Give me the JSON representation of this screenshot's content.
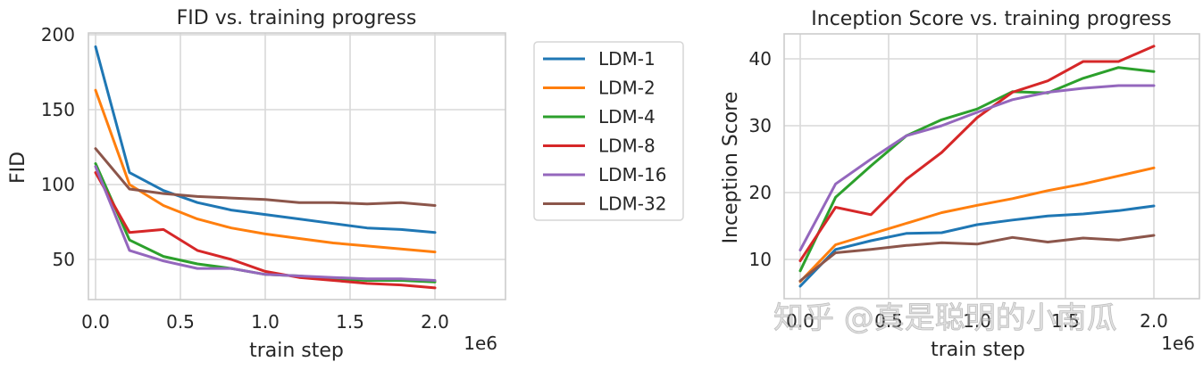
{
  "chart_data": [
    {
      "type": "line",
      "title": "FID vs. training progress",
      "xlabel": "train step",
      "ylabel": "FID",
      "x_offset_label": "1e6",
      "xticks": [
        "0.0",
        "0.5",
        "1.0",
        "1.5",
        "2.0"
      ],
      "yticks": [
        "50",
        "100",
        "150",
        "200"
      ],
      "xlim": [
        -0.05,
        2.08
      ],
      "ylim": [
        25,
        202
      ],
      "grid": true,
      "legend_position": "outside-right",
      "x": [
        0.0,
        0.2,
        0.4,
        0.6,
        0.8,
        1.0,
        1.2,
        1.4,
        1.6,
        1.8,
        2.0
      ],
      "series": [
        {
          "name": "LDM-1",
          "color": "#1f77b4",
          "values": [
            192,
            108,
            96,
            88,
            83,
            80,
            77,
            74,
            71,
            70,
            68
          ]
        },
        {
          "name": "LDM-2",
          "color": "#ff7f0e",
          "values": [
            163,
            100,
            86,
            77,
            71,
            67,
            64,
            61,
            59,
            57,
            55
          ]
        },
        {
          "name": "LDM-4",
          "color": "#2ca02c",
          "values": [
            114,
            63,
            52,
            47,
            44,
            40,
            39,
            37,
            36,
            36,
            35
          ]
        },
        {
          "name": "LDM-8",
          "color": "#d62728",
          "values": [
            108,
            68,
            70,
            56,
            50,
            42,
            38,
            36,
            34,
            33,
            31
          ]
        },
        {
          "name": "LDM-16",
          "color": "#9467bd",
          "values": [
            112,
            56,
            49,
            44,
            44,
            40,
            39,
            38,
            37,
            37,
            36
          ]
        },
        {
          "name": "LDM-32",
          "color": "#8c564b",
          "values": [
            124,
            97,
            94,
            92,
            91,
            90,
            88,
            88,
            87,
            88,
            86
          ]
        }
      ]
    },
    {
      "type": "line",
      "title": "Inception Score vs. training progress",
      "xlabel": "train step",
      "ylabel": "Inception Score",
      "x_offset_label": "1e6",
      "xticks": [
        "0.0",
        "0.5",
        "1.0",
        "1.5",
        "2.0"
      ],
      "yticks": [
        "10",
        "20",
        "30",
        "40"
      ],
      "xlim": [
        -0.09,
        2.12
      ],
      "ylim": [
        4.3,
        43.5
      ],
      "grid": true,
      "x": [
        0.0,
        0.2,
        0.4,
        0.6,
        0.8,
        1.0,
        1.2,
        1.4,
        1.6,
        1.8,
        2.0
      ],
      "series": [
        {
          "name": "LDM-1",
          "color": "#1f77b4",
          "values": [
            6.0,
            11.5,
            12.8,
            13.9,
            14.0,
            15.2,
            15.9,
            16.5,
            16.8,
            17.3,
            18.0
          ]
        },
        {
          "name": "LDM-2",
          "color": "#ff7f0e",
          "values": [
            6.7,
            12.2,
            13.8,
            15.4,
            17.0,
            18.1,
            19.1,
            20.3,
            21.3,
            22.5,
            23.7
          ]
        },
        {
          "name": "LDM-4",
          "color": "#2ca02c",
          "values": [
            8.3,
            19.3,
            24.0,
            28.5,
            30.9,
            32.5,
            35.1,
            34.9,
            37.1,
            38.7,
            38.1
          ]
        },
        {
          "name": "LDM-8",
          "color": "#d62728",
          "values": [
            9.8,
            17.8,
            16.7,
            22.0,
            26.0,
            31.2,
            35.0,
            36.7,
            39.6,
            39.6,
            41.9
          ]
        },
        {
          "name": "LDM-16",
          "color": "#9467bd",
          "values": [
            11.4,
            21.3,
            25.0,
            28.5,
            30.0,
            32.0,
            33.9,
            35.0,
            35.6,
            36.0,
            36.0
          ]
        },
        {
          "name": "LDM-32",
          "color": "#8c564b",
          "values": [
            6.8,
            11.0,
            11.5,
            12.1,
            12.5,
            12.3,
            13.3,
            12.6,
            13.2,
            12.9,
            13.6
          ]
        }
      ]
    }
  ],
  "legend": {
    "entries": [
      "LDM-1",
      "LDM-2",
      "LDM-4",
      "LDM-8",
      "LDM-16",
      "LDM-32"
    ]
  },
  "watermark": "知乎 @真是聪明的小南瓜"
}
